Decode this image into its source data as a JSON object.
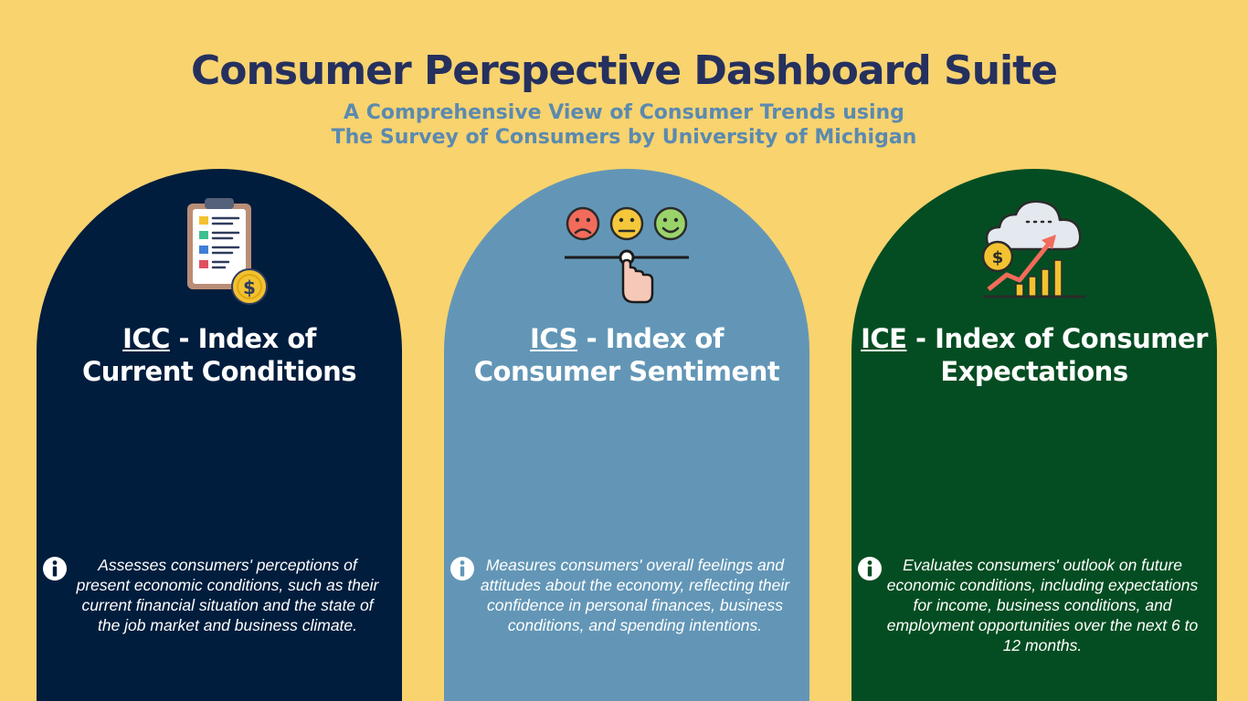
{
  "header": {
    "title": "Consumer Perspective Dashboard Suite",
    "subtitle_line1": "A Comprehensive View of Consumer Trends using",
    "subtitle_line2": "The Survey of Consumers by University of Michigan"
  },
  "colors": {
    "background": "#f8d36e",
    "title": "#25305e",
    "subtitle": "#5b8ab0",
    "icc_card": "#001d3d",
    "ics_card": "#6396b6",
    "ice_card": "#044d22"
  },
  "cards": [
    {
      "abbr": "ICC",
      "title_rest": " - Index of",
      "title_line2": "Current Conditions",
      "icon": "clipboard-dollar-icon",
      "description": "Assesses consumers' perceptions of present economic conditions, such as their current financial situation and the state of the job market and business climate."
    },
    {
      "abbr": "ICS",
      "title_rest": " - Index of",
      "title_line2": "Consumer Sentiment",
      "icon": "sentiment-slider-icon",
      "description": "Measures consumers' overall feelings and attitudes about the economy, reflecting their confidence in personal finances, business conditions, and spending intentions."
    },
    {
      "abbr": "ICE",
      "title_rest": " - Index of Consumer",
      "title_line2": "Expectations",
      "icon": "cloud-growth-chart-icon",
      "description": "Evaluates consumers' outlook on future economic conditions, including expectations for income, business conditions, and employment opportunities over the next 6 to 12 months."
    }
  ]
}
